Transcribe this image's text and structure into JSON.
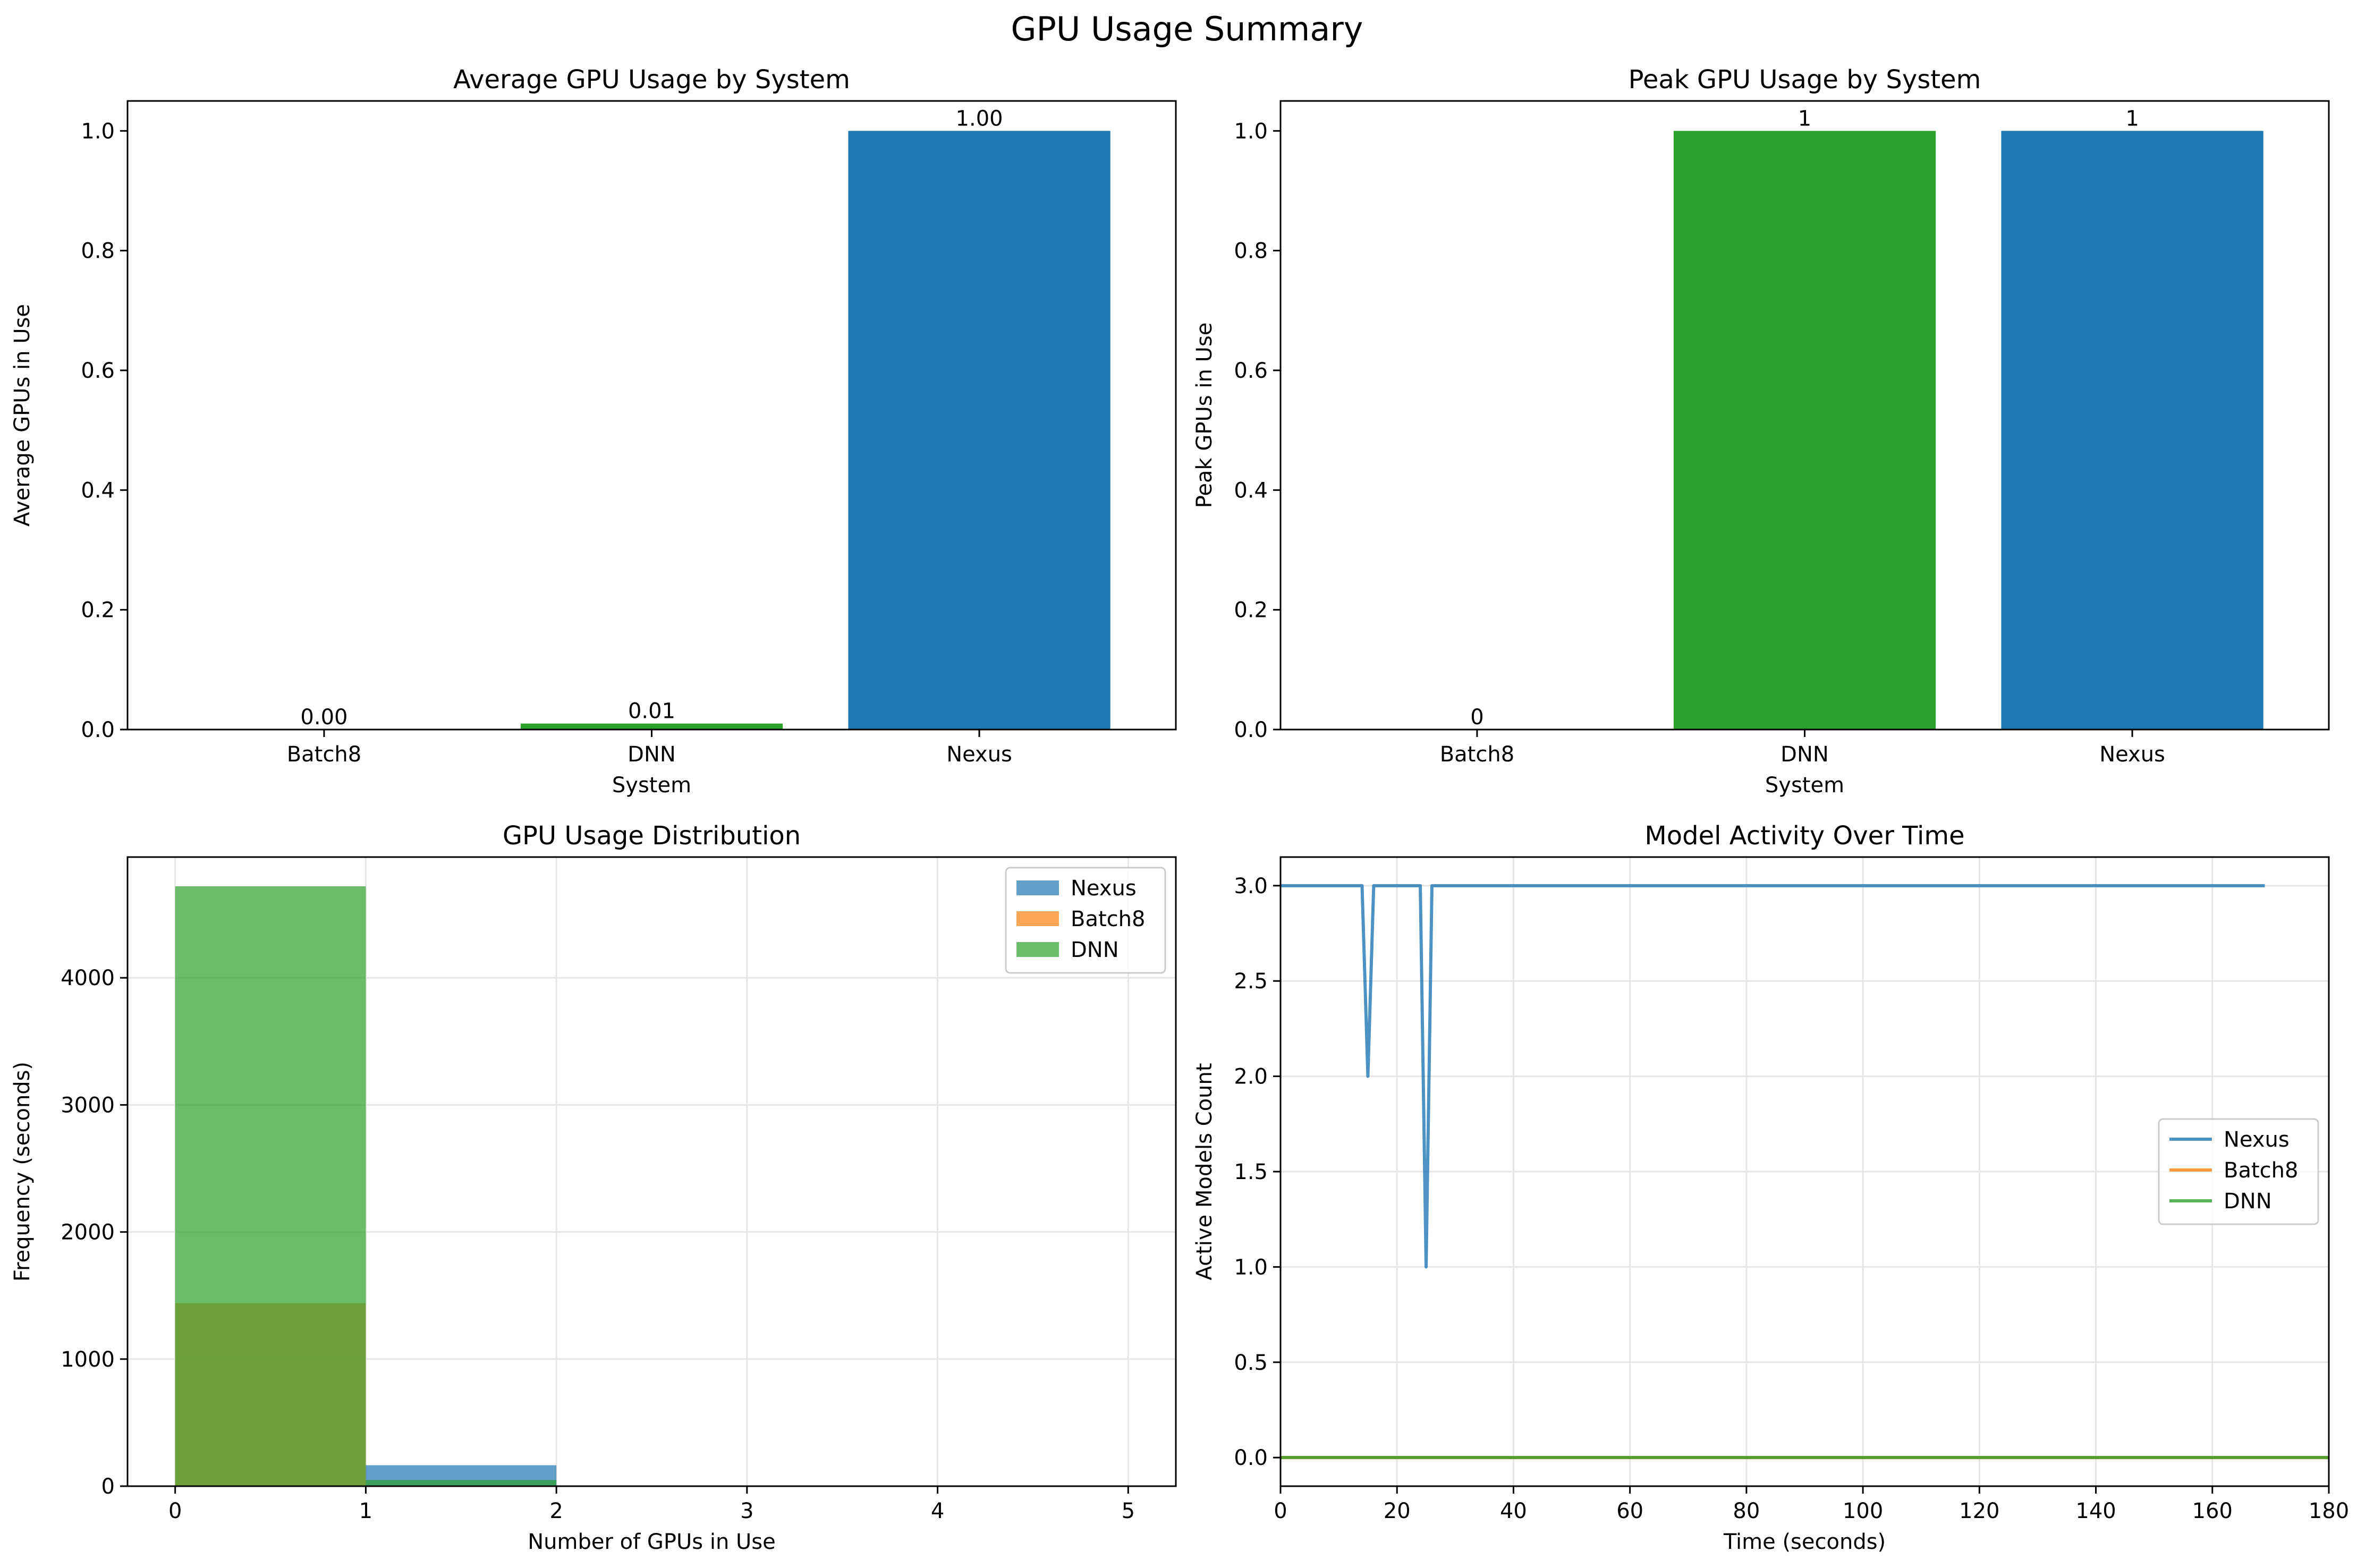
{
  "suptitle": "GPU Usage Summary",
  "colors": {
    "nexus": "#1f77b4",
    "batch8": "#ff7f0e",
    "dnn": "#2ca02c"
  },
  "chart_data": [
    {
      "type": "bar",
      "title": "Average GPU Usage by System",
      "xlabel": "System",
      "ylabel": "Average GPUs in Use",
      "categories": [
        "Batch8",
        "DNN",
        "Nexus"
      ],
      "values": [
        0.0,
        0.01,
        1.0
      ],
      "value_labels": [
        "0.00",
        "0.01",
        "1.00"
      ],
      "bar_colors": [
        "#ff7f0e",
        "#2ca02c",
        "#1f77b4"
      ],
      "ylim": [
        0,
        1.05
      ],
      "yticks": [
        0.0,
        0.2,
        0.4,
        0.6,
        0.8,
        1.0
      ],
      "ytick_labels": [
        "0.0",
        "0.2",
        "0.4",
        "0.6",
        "0.8",
        "1.0"
      ],
      "grid": false
    },
    {
      "type": "bar",
      "title": "Peak GPU Usage by System",
      "xlabel": "System",
      "ylabel": "Peak GPUs in Use",
      "categories": [
        "Batch8",
        "DNN",
        "Nexus"
      ],
      "values": [
        0,
        1,
        1
      ],
      "value_labels": [
        "0",
        "1",
        "1"
      ],
      "bar_colors": [
        "#ff7f0e",
        "#2ca02c",
        "#1f77b4"
      ],
      "ylim": [
        0,
        1.05
      ],
      "yticks": [
        0.0,
        0.2,
        0.4,
        0.6,
        0.8,
        1.0
      ],
      "ytick_labels": [
        "0.0",
        "0.2",
        "0.4",
        "0.6",
        "0.8",
        "1.0"
      ],
      "grid": false
    },
    {
      "type": "histogram",
      "title": "GPU Usage Distribution",
      "xlabel": "Number of GPUs in Use",
      "ylabel": "Frequency (seconds)",
      "bins": [
        [
          0,
          1
        ],
        [
          1,
          2
        ]
      ],
      "series": [
        {
          "name": "Nexus",
          "color": "#1f77b4",
          "counts": [
            0,
            165
          ]
        },
        {
          "name": "Batch8",
          "color": "#ff7f0e",
          "counts": [
            1440,
            0
          ]
        },
        {
          "name": "DNN",
          "color": "#2ca02c",
          "counts": [
            4720,
            48
          ]
        }
      ],
      "xlim": [
        -0.25,
        5.25
      ],
      "ylim": [
        0,
        4950
      ],
      "xticks": [
        0,
        1,
        2,
        3,
        4,
        5
      ],
      "xtick_labels": [
        "0",
        "1",
        "2",
        "3",
        "4",
        "5"
      ],
      "yticks": [
        0,
        1000,
        2000,
        3000,
        4000
      ],
      "ytick_labels": [
        "0",
        "1000",
        "2000",
        "3000",
        "4000"
      ],
      "legend": "upper right",
      "grid": true
    },
    {
      "type": "line",
      "title": "Model Activity Over Time",
      "xlabel": "Time (seconds)",
      "ylabel": "Active Models Count",
      "series": [
        {
          "name": "Nexus",
          "color": "#1f77b4",
          "x": [
            0,
            14,
            15,
            16,
            24,
            25,
            26,
            169
          ],
          "y": [
            3,
            3,
            2,
            3,
            3,
            1,
            3,
            3
          ]
        },
        {
          "name": "Batch8",
          "color": "#ff7f0e",
          "x": [
            0,
            180
          ],
          "y": [
            0,
            0
          ]
        },
        {
          "name": "DNN",
          "color": "#2ca02c",
          "x": [
            0,
            180
          ],
          "y": [
            0,
            0
          ]
        }
      ],
      "xlim": [
        0,
        180
      ],
      "ylim": [
        -0.15,
        3.15
      ],
      "xticks": [
        0,
        20,
        40,
        60,
        80,
        100,
        120,
        140,
        160,
        180
      ],
      "xtick_labels": [
        "0",
        "20",
        "40",
        "60",
        "80",
        "100",
        "120",
        "140",
        "160",
        "180"
      ],
      "yticks": [
        0,
        0.5,
        1,
        1.5,
        2,
        2.5,
        3
      ],
      "ytick_labels": [
        "0.0",
        "0.5",
        "1.0",
        "1.5",
        "2.0",
        "2.5",
        "3.0"
      ],
      "legend": "center right",
      "grid": true
    }
  ]
}
